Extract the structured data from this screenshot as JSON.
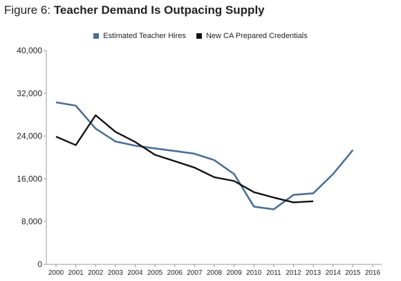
{
  "title": {
    "prefix": "Figure 6: ",
    "main": "Teacher Demand Is Outpacing Supply"
  },
  "colors": {
    "hires": "#4a6f95",
    "credentials": "#111111",
    "axis": "#999999"
  },
  "chart_data": {
    "type": "line",
    "x": [
      2000,
      2001,
      2002,
      2003,
      2004,
      2005,
      2006,
      2007,
      2008,
      2009,
      2010,
      2011,
      2012,
      2013,
      2014,
      2015,
      2016
    ],
    "series": [
      {
        "name": "Estimated Teacher Hires",
        "color": "#4a6f95",
        "values": [
          30300,
          29700,
          25400,
          23000,
          22200,
          21700,
          21200,
          20700,
          19500,
          16900,
          10800,
          10300,
          13000,
          13300,
          16900,
          21400,
          null
        ]
      },
      {
        "name": "New CA Prepared Credentials",
        "color": "#111111",
        "values": [
          23900,
          22300,
          27900,
          24800,
          22900,
          20500,
          19300,
          18100,
          16300,
          15600,
          13500,
          12500,
          11600,
          11800,
          null,
          null,
          null
        ]
      }
    ],
    "y_ticks": [
      "0",
      "8,000",
      "16,000",
      "24,000",
      "32,000",
      "40,000"
    ],
    "x_ticks": [
      "2000",
      "2001",
      "2002",
      "2003",
      "2004",
      "2005",
      "2006",
      "2007",
      "2008",
      "2009",
      "2010",
      "2011",
      "2012",
      "2013",
      "2014",
      "2015",
      "2016"
    ],
    "ylim": [
      0,
      40000
    ],
    "legend": "top-center",
    "grid": false
  }
}
